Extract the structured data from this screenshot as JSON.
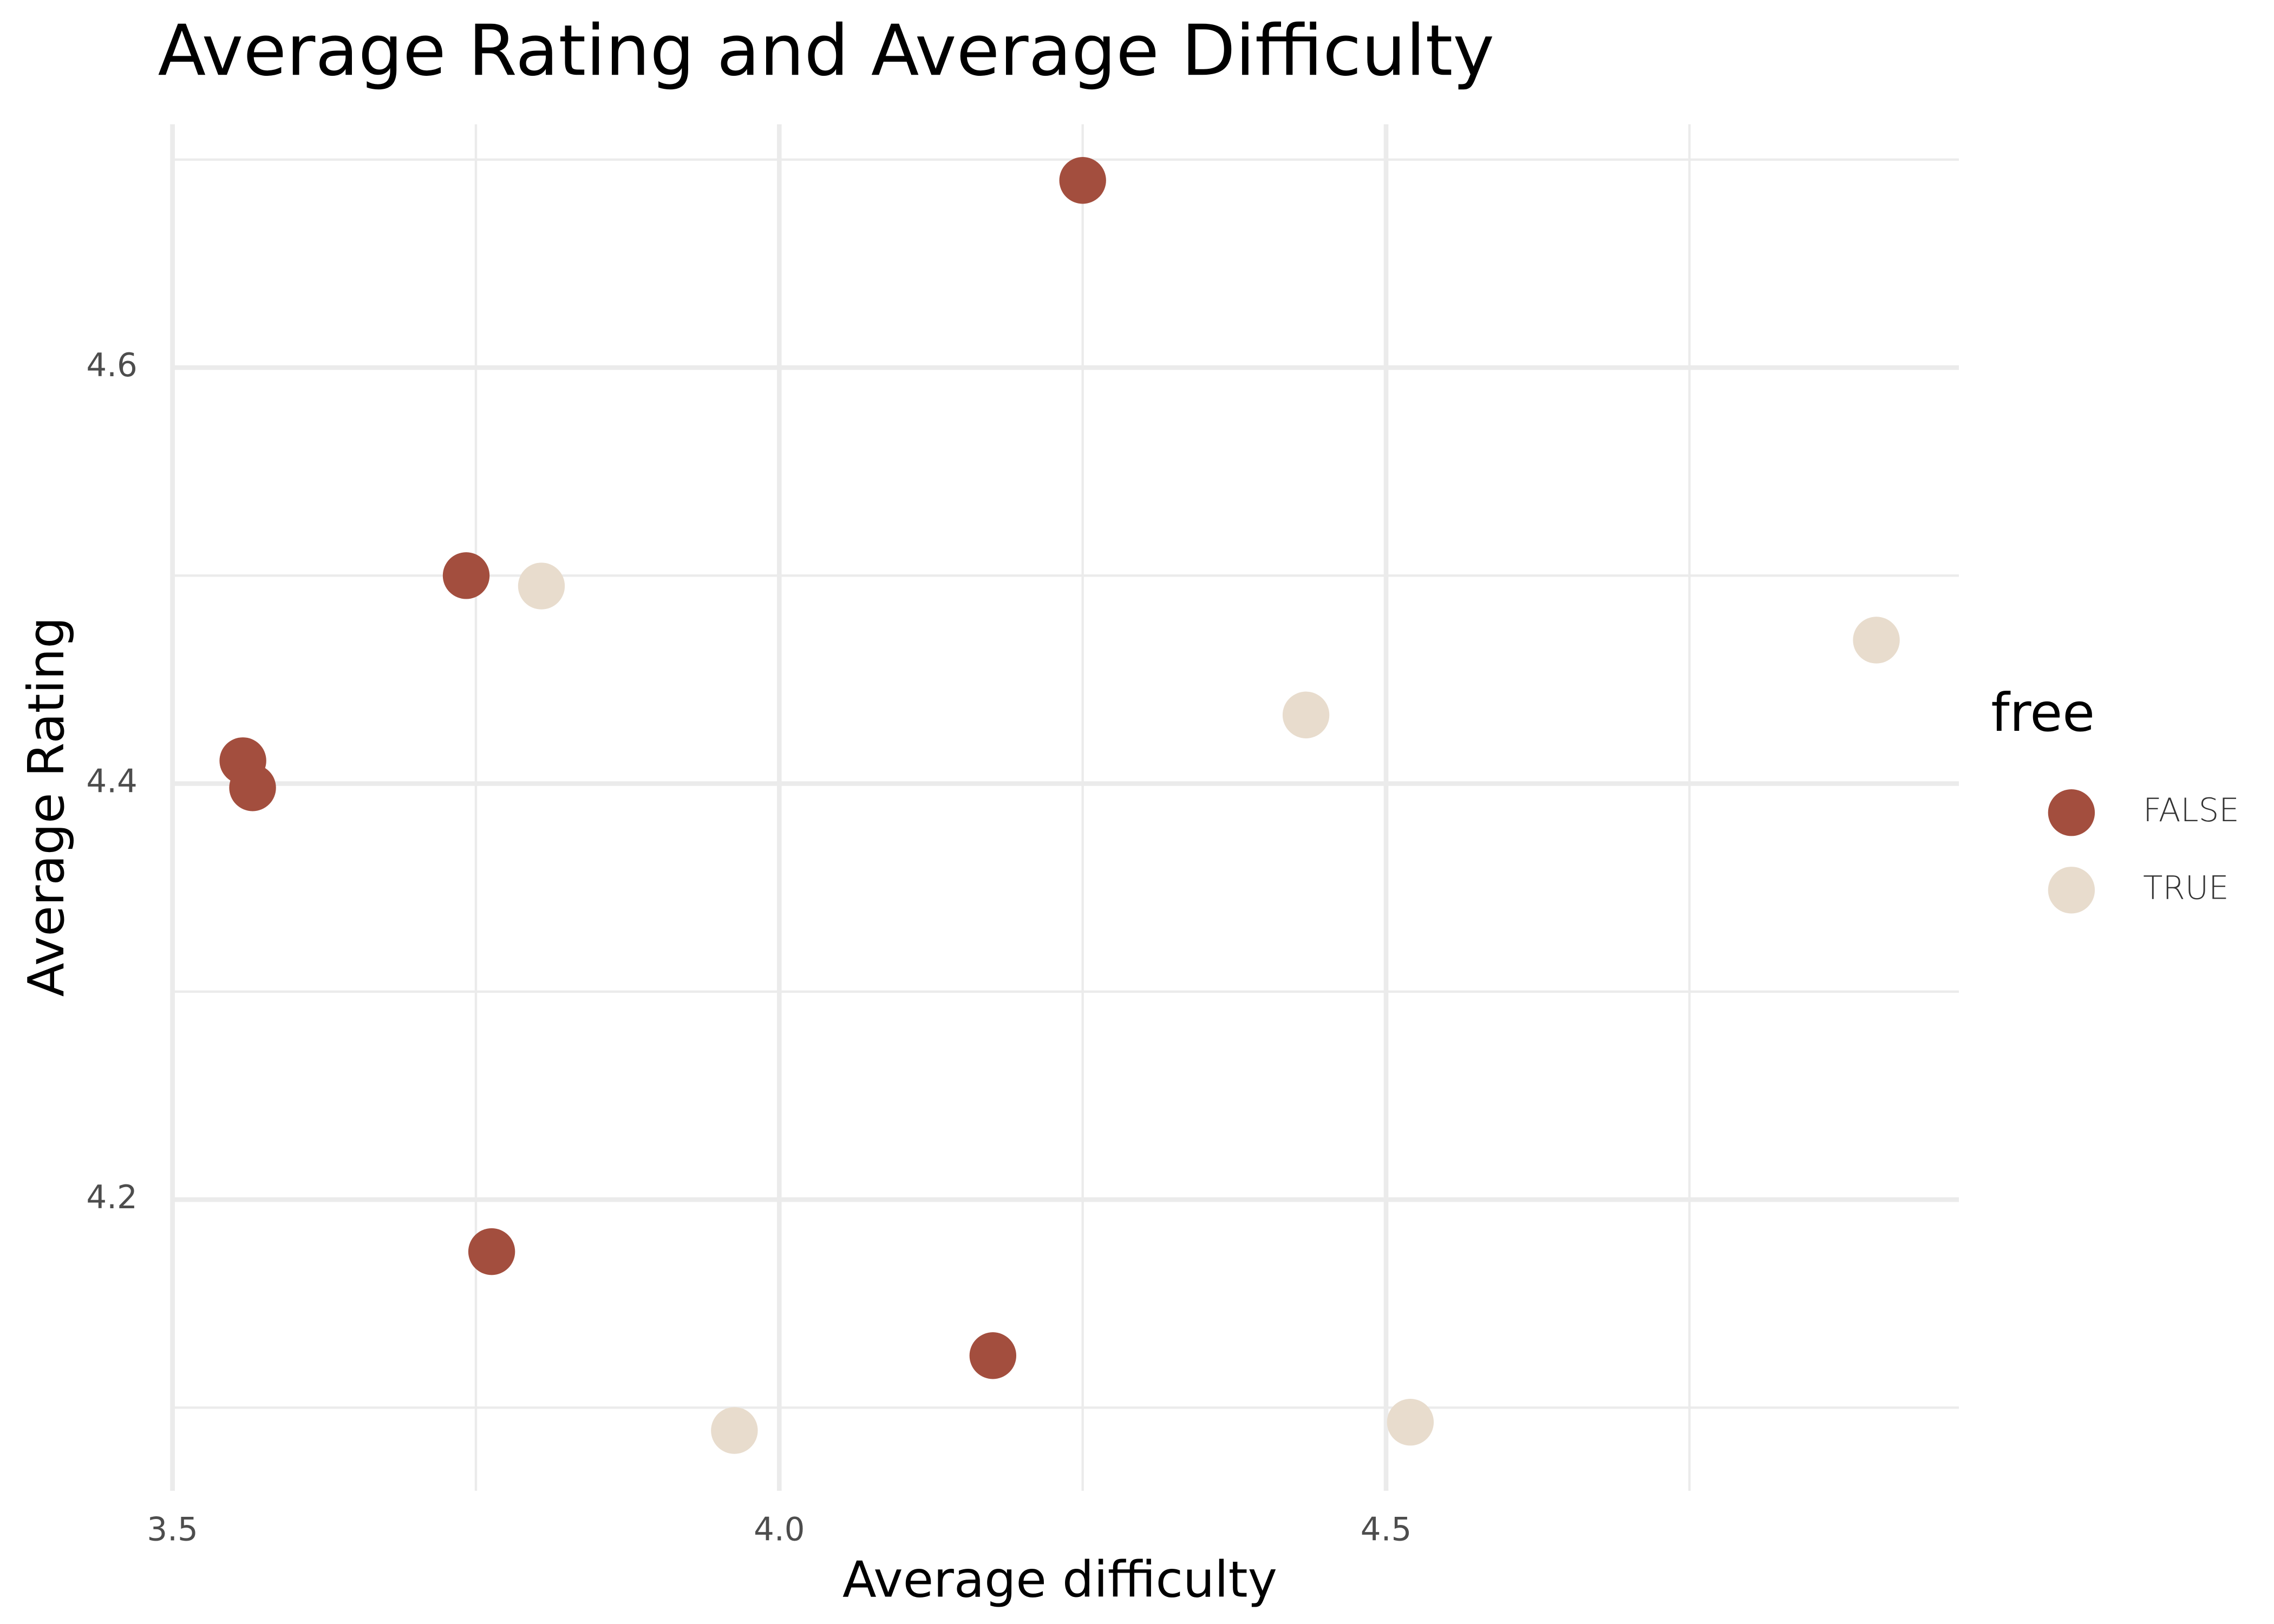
{
  "chart_data": {
    "type": "scatter",
    "title": "Average Rating and Average Difficulty",
    "x_label": "Average difficulty",
    "y_label": "Average Rating",
    "legend_title": "free",
    "legend_position": "right",
    "grid": true,
    "xlim": [
      3.5,
      4.972
    ],
    "ylim": [
      4.06,
      4.717
    ],
    "xticks": [
      {
        "value": 3.5,
        "label": "3.5"
      },
      {
        "value": 4.0,
        "label": "4.0"
      },
      {
        "value": 4.5,
        "label": "4.5"
      }
    ],
    "yticks": [
      4.2,
      4.4,
      4.6
    ],
    "minor_xticks": [
      3.75,
      4.25,
      4.75
    ],
    "minor_yticks": [
      4.1,
      4.3,
      4.5,
      4.7
    ],
    "series": [
      {
        "name": "FALSE",
        "color": "#a34e3e",
        "x": [
          4.25,
          3.742,
          3.558,
          3.566,
          3.763,
          4.176
        ],
        "values": [
          4.69,
          4.5,
          4.411,
          4.398,
          4.175,
          4.125
        ]
      },
      {
        "name": "TRUE",
        "color": "#e8dccd",
        "x": [
          3.804,
          4.904,
          4.434,
          3.963,
          4.52
        ],
        "values": [
          4.495,
          4.469,
          4.433,
          4.089,
          4.093
        ]
      }
    ]
  }
}
